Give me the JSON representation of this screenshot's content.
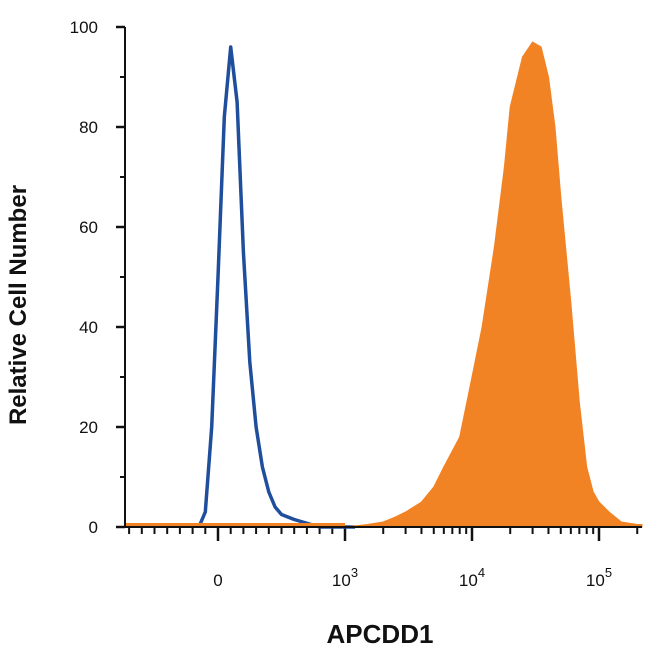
{
  "chart_data": {
    "type": "area",
    "title": "",
    "xlabel": "APCDD1",
    "ylabel": "Relative Cell Number",
    "x_scale": "biexponential",
    "ylim": [
      0,
      100
    ],
    "yticks": [
      0,
      20,
      40,
      60,
      80,
      100
    ],
    "xticks": [
      {
        "value": 0,
        "label": "0",
        "exponent": ""
      },
      {
        "value": 1000,
        "label": "10",
        "exponent": "3"
      },
      {
        "value": 10000,
        "label": "10",
        "exponent": "4"
      },
      {
        "value": 100000,
        "label": "10",
        "exponent": "5"
      }
    ],
    "grid": false,
    "legend": "none",
    "series": [
      {
        "style": "outline",
        "color": "#1f4e9c",
        "x": [
          -150,
          -100,
          -50,
          0,
          50,
          100,
          150,
          200,
          250,
          300,
          350,
          400,
          450,
          500,
          600,
          800,
          1000,
          1200
        ],
        "y": [
          0,
          3,
          20,
          50,
          82,
          96,
          85,
          55,
          33,
          20,
          12,
          7,
          4,
          2.5,
          1.5,
          0,
          0,
          0
        ]
      },
      {
        "style": "filled",
        "color": "#f28325",
        "x": [
          1000,
          1500,
          2000,
          2500,
          3000,
          4000,
          5000,
          6000,
          8000,
          10000,
          12000,
          15000,
          18000,
          20000,
          25000,
          30000,
          35000,
          40000,
          45000,
          50000,
          60000,
          70000,
          80000,
          90000,
          100000,
          120000,
          150000,
          200000
        ],
        "y": [
          0,
          0.5,
          1,
          2,
          3,
          5,
          8,
          12,
          18,
          30,
          40,
          56,
          72,
          84,
          94,
          97,
          96,
          90,
          80,
          66,
          45,
          25,
          12,
          7,
          5,
          3,
          1,
          0.5
        ]
      }
    ]
  }
}
